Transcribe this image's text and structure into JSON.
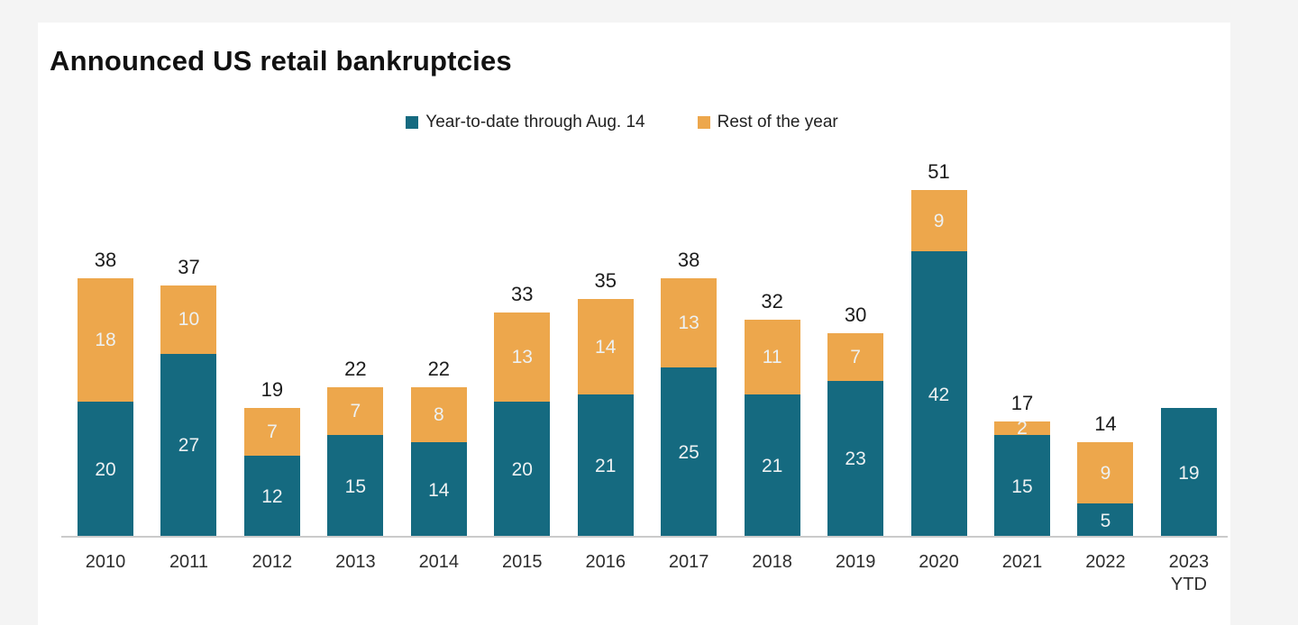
{
  "title": "Announced US retail bankruptcies",
  "legend": [
    {
      "label": "Year-to-date through Aug. 14",
      "color": "#156a80"
    },
    {
      "label": "Rest of the year",
      "color": "#eda74c"
    }
  ],
  "chart_data": {
    "type": "bar",
    "stacked": true,
    "title": "Announced US retail bankruptcies",
    "categories": [
      "2010",
      "2011",
      "2012",
      "2013",
      "2014",
      "2015",
      "2016",
      "2017",
      "2018",
      "2019",
      "2020",
      "2021",
      "2022",
      "2023 YTD"
    ],
    "series": [
      {
        "name": "Year-to-date through Aug. 14",
        "color": "#156a80",
        "values": [
          20,
          27,
          12,
          15,
          14,
          20,
          21,
          25,
          21,
          23,
          42,
          15,
          5,
          19
        ]
      },
      {
        "name": "Rest of the year",
        "color": "#eda74c",
        "values": [
          18,
          10,
          7,
          7,
          8,
          13,
          14,
          13,
          11,
          7,
          9,
          2,
          9,
          0
        ]
      }
    ],
    "totals": [
      38,
      37,
      19,
      22,
      22,
      33,
      35,
      38,
      32,
      30,
      51,
      17,
      14,
      null
    ],
    "xlabel": "",
    "ylabel": "",
    "ylim": [
      0,
      53
    ],
    "grid": false,
    "legend_position": "top",
    "bar_label_color": "#edf1f2",
    "total_label_color": "#1c1c1c",
    "axis_line_color": "#cbcbcb"
  }
}
